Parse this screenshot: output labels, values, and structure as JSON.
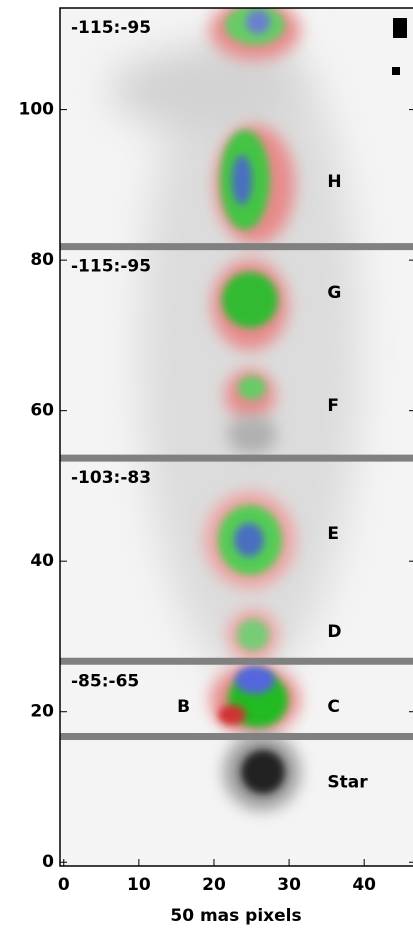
{
  "chart_data": {
    "type": "image",
    "xlabel": "50 mas pixels",
    "xlim": [
      -0.5,
      46.5
    ],
    "ylim": [
      -0.5,
      113.5
    ],
    "xticks": [
      0,
      10,
      20,
      30,
      40
    ],
    "yticks": [
      0,
      20,
      40,
      60,
      80,
      100
    ],
    "separators": [
      81.8,
      53.7,
      26.7,
      16.7
    ],
    "panel_labels": [
      "-115:-95",
      "-115:-95",
      "-103:-83",
      "-85:-65"
    ],
    "annotations": [
      {
        "text": "H",
        "x": 35.1,
        "y": 90.4
      },
      {
        "text": "G",
        "x": 35.1,
        "y": 75.6
      },
      {
        "text": "F",
        "x": 35.1,
        "y": 60.6
      },
      {
        "text": "E",
        "x": 35.1,
        "y": 43.6
      },
      {
        "text": "D",
        "x": 35.1,
        "y": 30.6
      },
      {
        "text": "C",
        "x": 35.1,
        "y": 20.6
      },
      {
        "text": "B",
        "x": 15.1,
        "y": 20.6
      },
      {
        "text": "Star",
        "x": 35.1,
        "y": 10.6
      }
    ]
  }
}
